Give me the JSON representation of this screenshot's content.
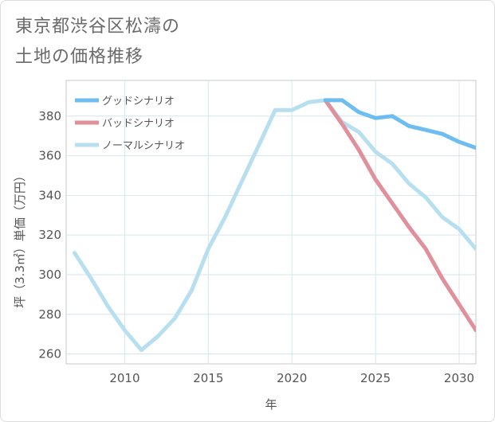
{
  "title": "東京都渋谷区松濤の\n土地の価格推移",
  "chart_data": {
    "type": "line",
    "title": "東京都渋谷区松濤の土地の価格推移",
    "xlabel": "年",
    "ylabel": "坪（3.3㎡）単価（万円）",
    "xlim": [
      2006.5,
      2031
    ],
    "ylim": [
      255,
      398
    ],
    "xticks": [
      2010,
      2015,
      2020,
      2025,
      2030
    ],
    "yticks": [
      260,
      280,
      300,
      320,
      340,
      360,
      380
    ],
    "grid": true,
    "legend_position": "top-left",
    "series": [
      {
        "name": "グッドシナリオ",
        "color": "#6dbdf0",
        "x": [
          2022,
          2023,
          2024,
          2025,
          2026,
          2027,
          2028,
          2029,
          2030,
          2031
        ],
        "y": [
          388,
          388,
          382,
          379,
          380,
          375,
          373,
          371,
          367,
          364
        ]
      },
      {
        "name": "バッドシナリオ",
        "color": "#e0909a",
        "x": [
          2022,
          2023,
          2024,
          2025,
          2026,
          2027,
          2028,
          2029,
          2030,
          2031
        ],
        "y": [
          388,
          376,
          363,
          348,
          336,
          324,
          313,
          298,
          285,
          272
        ]
      },
      {
        "name": "ノーマルシナリオ",
        "color": "#b8dff0",
        "x": [
          2007,
          2008,
          2009,
          2010,
          2011,
          2012,
          2013,
          2014,
          2015,
          2016,
          2017,
          2018,
          2019,
          2020,
          2021,
          2022,
          2023,
          2024,
          2025,
          2026,
          2027,
          2028,
          2029,
          2030,
          2031
        ],
        "y": [
          311,
          298,
          284,
          272,
          262,
          269,
          278,
          292,
          313,
          329,
          347,
          365,
          383,
          383,
          387,
          388,
          377,
          372,
          362,
          356,
          346,
          339,
          329,
          323,
          313
        ]
      }
    ]
  }
}
